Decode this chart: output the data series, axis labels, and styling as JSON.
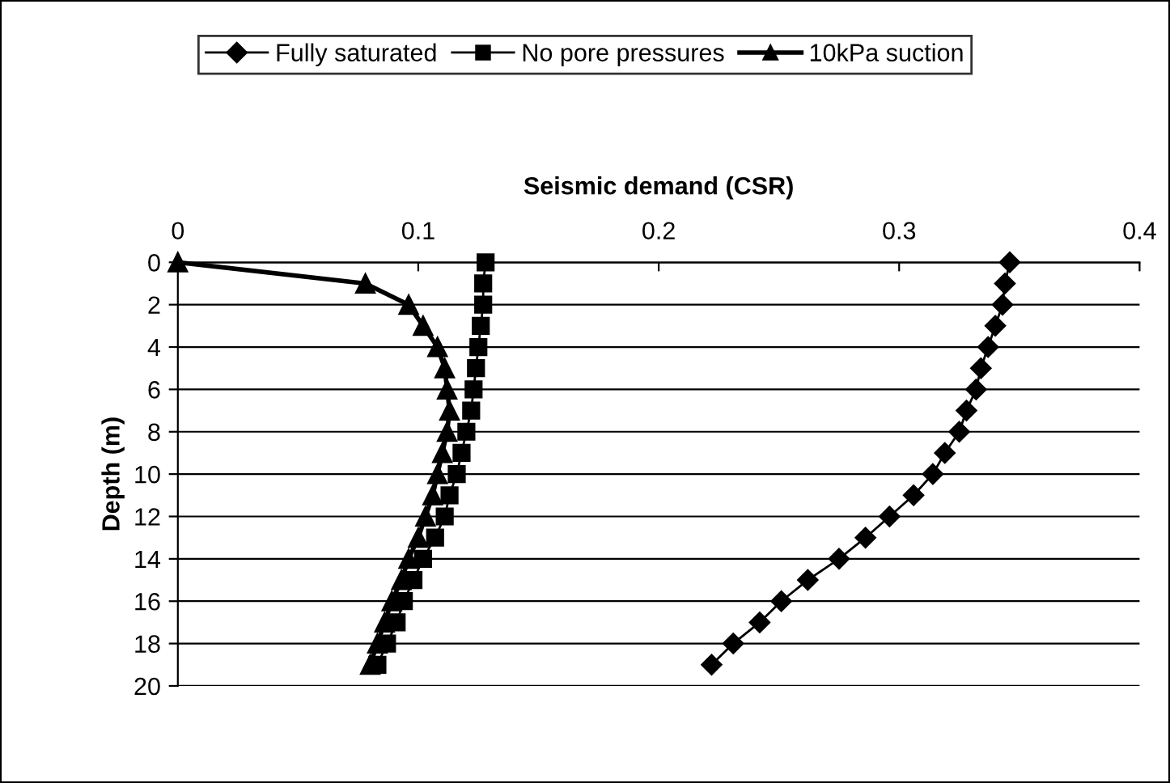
{
  "chart_data": {
    "type": "line",
    "xlabel": "Seismic demand (CSR)",
    "ylabel": "Depth (m)",
    "xlim": [
      0,
      0.4
    ],
    "xticks": [
      0,
      0.1,
      0.2,
      0.3,
      0.4
    ],
    "ylim": [
      20,
      0
    ],
    "yticks": [
      0,
      2,
      4,
      6,
      8,
      10,
      12,
      14,
      16,
      18,
      20
    ],
    "grid": "y",
    "legend": "top",
    "line_style": "solid",
    "series": [
      {
        "name": "Fully saturated",
        "color": "#000000",
        "marker": "diamond",
        "x": [
          0.346,
          0.344,
          0.343,
          0.34,
          0.337,
          0.334,
          0.332,
          0.328,
          0.325,
          0.319,
          0.314,
          0.306,
          0.296,
          0.286,
          0.275,
          0.262,
          0.251,
          0.242,
          0.231,
          0.222
        ],
        "values": [
          0,
          1,
          2,
          3,
          4,
          5,
          6,
          7,
          8,
          9,
          10,
          11,
          12,
          13,
          14,
          15,
          16,
          17,
          18,
          19
        ]
      },
      {
        "name": "No pore pressures",
        "color": "#000000",
        "marker": "square",
        "x": [
          0.128,
          0.127,
          0.127,
          0.126,
          0.125,
          0.124,
          0.123,
          0.122,
          0.12,
          0.118,
          0.116,
          0.113,
          0.111,
          0.107,
          0.102,
          0.098,
          0.094,
          0.091,
          0.087,
          0.083
        ],
        "values": [
          0,
          1,
          2,
          3,
          4,
          5,
          6,
          7,
          8,
          9,
          10,
          11,
          12,
          13,
          14,
          15,
          16,
          17,
          18,
          19
        ]
      },
      {
        "name": "10kPa suction",
        "color": "#000000",
        "marker": "triangle",
        "x": [
          0,
          0.078,
          0.096,
          0.102,
          0.108,
          0.111,
          0.112,
          0.113,
          0.112,
          0.11,
          0.108,
          0.106,
          0.103,
          0.1,
          0.096,
          0.093,
          0.089,
          0.086,
          0.083,
          0.08
        ],
        "values": [
          0,
          1,
          2,
          3,
          4,
          5,
          6,
          7,
          8,
          9,
          10,
          11,
          12,
          13,
          14,
          15,
          16,
          17,
          18,
          19
        ]
      }
    ]
  }
}
